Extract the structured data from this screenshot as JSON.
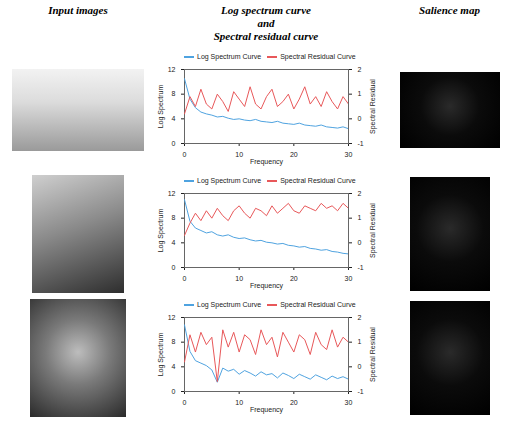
{
  "column_headers": [
    [
      "Input images"
    ],
    [
      "Log spectrum curve",
      "and",
      "Spectral residual curve"
    ],
    [
      "Salience map"
    ]
  ],
  "chart_data": [
    {
      "type": "line",
      "x_label": "Frequency",
      "y_label": "Log Spectrum",
      "y2_label": "Spectral Residual",
      "legend": "top",
      "x": [
        0,
        1,
        2,
        3,
        4,
        5,
        6,
        7,
        8,
        9,
        10,
        11,
        12,
        13,
        14,
        15,
        16,
        17,
        18,
        19,
        20,
        21,
        22,
        23,
        24,
        25,
        26,
        27,
        28,
        29,
        30
      ],
      "xlim": [
        0,
        30
      ],
      "xticks": [
        0,
        10,
        20,
        30
      ],
      "ylim": [
        0,
        12
      ],
      "yticks": [
        0,
        4,
        8,
        12
      ],
      "y2lim": [
        -1,
        2
      ],
      "y2ticks": [
        -1,
        0,
        1,
        2
      ],
      "series": [
        {
          "name": "Log Spectrum Curve",
          "color": "#4fa3e0",
          "values": [
            10.5,
            7.2,
            5.8,
            5.1,
            4.8,
            4.6,
            4.3,
            4.4,
            4.1,
            3.9,
            4.0,
            3.8,
            3.7,
            3.9,
            3.6,
            3.5,
            3.4,
            3.6,
            3.3,
            3.2,
            3.1,
            3.3,
            3.0,
            2.9,
            2.8,
            3.0,
            2.7,
            2.6,
            2.5,
            2.7,
            2.4
          ]
        },
        {
          "name": "Spectral Residual Curve",
          "color": "#e8585a",
          "axis": "y2",
          "values": [
            0.2,
            0.9,
            0.5,
            1.2,
            0.6,
            0.4,
            1.0,
            0.7,
            0.3,
            1.1,
            0.8,
            0.5,
            1.3,
            0.6,
            0.4,
            0.9,
            1.2,
            0.5,
            0.7,
            1.0,
            0.4,
            0.8,
            1.3,
            0.6,
            0.9,
            0.5,
            1.1,
            0.7,
            0.4,
            0.9,
            0.6
          ]
        }
      ]
    },
    {
      "type": "line",
      "x_label": "Frequency",
      "y_label": "Log Spectrum",
      "y2_label": "Spectral Residual",
      "legend": "top",
      "x": [
        0,
        1,
        2,
        3,
        4,
        5,
        6,
        7,
        8,
        9,
        10,
        11,
        12,
        13,
        14,
        15,
        16,
        17,
        18,
        19,
        20,
        21,
        22,
        23,
        24,
        25,
        26,
        27,
        28,
        29,
        30
      ],
      "xlim": [
        0,
        30
      ],
      "xticks": [
        0,
        10,
        20,
        30
      ],
      "ylim": [
        0,
        12
      ],
      "yticks": [
        0,
        4,
        8,
        12
      ],
      "y2lim": [
        -1,
        2
      ],
      "y2ticks": [
        -1,
        0,
        1,
        2
      ],
      "series": [
        {
          "name": "Log Spectrum Curve",
          "color": "#4fa3e0",
          "values": [
            11.0,
            7.5,
            6.4,
            6.0,
            5.6,
            5.8,
            5.3,
            5.1,
            5.3,
            4.9,
            4.7,
            4.8,
            4.5,
            4.3,
            4.4,
            4.1,
            4.0,
            3.8,
            3.9,
            3.6,
            3.5,
            3.3,
            3.4,
            3.1,
            3.0,
            2.8,
            2.9,
            2.6,
            2.5,
            2.3,
            2.2
          ]
        },
        {
          "name": "Spectral Residual Curve",
          "color": "#e8585a",
          "axis": "y2",
          "values": [
            0.3,
            0.8,
            1.2,
            0.9,
            1.3,
            1.0,
            1.4,
            1.1,
            0.9,
            1.3,
            1.5,
            1.2,
            1.0,
            1.4,
            1.3,
            1.1,
            1.5,
            1.2,
            1.4,
            1.6,
            1.3,
            1.2,
            1.5,
            1.4,
            1.3,
            1.6,
            1.4,
            1.5,
            1.3,
            1.6,
            1.4
          ]
        }
      ]
    },
    {
      "type": "line",
      "x_label": "Frequency",
      "y_label": "Log Spectrum",
      "y2_label": "Spectral Residual",
      "legend": "top",
      "x": [
        0,
        1,
        2,
        3,
        4,
        5,
        6,
        7,
        8,
        9,
        10,
        11,
        12,
        13,
        14,
        15,
        16,
        17,
        18,
        19,
        20,
        21,
        22,
        23,
        24,
        25,
        26,
        27,
        28,
        29,
        30
      ],
      "xlim": [
        0,
        30
      ],
      "xticks": [
        0,
        10,
        20,
        30
      ],
      "ylim": [
        0,
        12
      ],
      "yticks": [
        0,
        4,
        8,
        12
      ],
      "y2lim": [
        -1,
        2
      ],
      "y2ticks": [
        -1,
        0,
        1,
        2
      ],
      "series": [
        {
          "name": "Log Spectrum Curve",
          "color": "#4fa3e0",
          "values": [
            10.8,
            6.5,
            5.0,
            4.6,
            4.2,
            3.5,
            1.5,
            3.8,
            3.3,
            3.6,
            2.8,
            3.4,
            3.0,
            2.5,
            3.2,
            2.7,
            2.9,
            2.2,
            3.0,
            2.6,
            2.1,
            2.8,
            2.4,
            2.0,
            2.7,
            2.3,
            1.9,
            2.5,
            2.1,
            2.4,
            2.0
          ]
        },
        {
          "name": "Spectral Residual Curve",
          "color": "#e8585a",
          "axis": "y2",
          "values": [
            0.2,
            1.3,
            0.6,
            1.4,
            0.9,
            1.2,
            -0.6,
            1.5,
            0.8,
            1.4,
            0.6,
            1.3,
            1.1,
            0.5,
            1.5,
            0.9,
            1.2,
            0.4,
            1.4,
            1.0,
            0.6,
            1.3,
            1.1,
            0.5,
            1.4,
            0.9,
            0.7,
            1.5,
            0.8,
            1.2,
            1.0
          ]
        }
      ]
    }
  ]
}
